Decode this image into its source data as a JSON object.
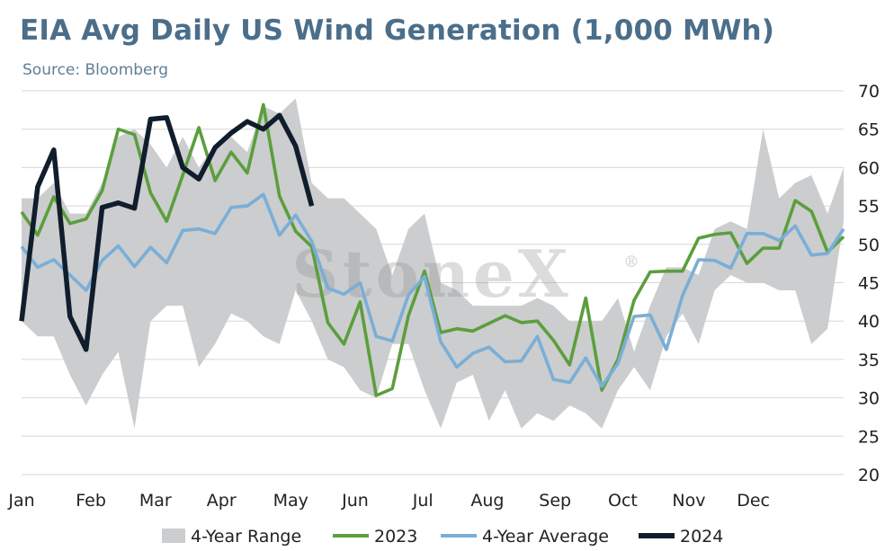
{
  "title": "EIA Avg Daily US Wind Generation (1,000 MWh)",
  "subtitle": "Source: Bloomberg",
  "watermark": "StoneX",
  "watermark_mark": "®",
  "chart_data": {
    "type": "line",
    "title": "EIA Avg Daily US Wind Generation (1,000 MWh)",
    "xlabel": "",
    "ylabel": "",
    "x_unit": "week of year",
    "x_range": [
      1,
      52
    ],
    "ylim": [
      20,
      70
    ],
    "yticks": [
      20,
      25,
      30,
      35,
      40,
      45,
      50,
      55,
      60,
      65,
      70
    ],
    "month_labels": [
      "Jan",
      "Feb",
      "Mar",
      "Apr",
      "May",
      "Jun",
      "Jul",
      "Aug",
      "Sep",
      "Oct",
      "Nov",
      "Dec"
    ],
    "month_week_positions": [
      1,
      5.3,
      9.3,
      13.4,
      17.7,
      21.7,
      25.9,
      29.9,
      34.1,
      38.3,
      42.4,
      46.4
    ],
    "grid": "horizontal",
    "y_axis_side": "right",
    "legend": "bottom",
    "range_band": {
      "name": "4-Year Range",
      "color": "#cbcdcf",
      "weeks": [
        1,
        2,
        3,
        4,
        5,
        6,
        7,
        8,
        9,
        10,
        11,
        12,
        13,
        14,
        15,
        16,
        17,
        18,
        19,
        20,
        21,
        22,
        23,
        24,
        25,
        26,
        27,
        28,
        29,
        30,
        31,
        32,
        33,
        34,
        35,
        36,
        37,
        38,
        39,
        40,
        41,
        42,
        43,
        44,
        45,
        46,
        47,
        48,
        49,
        50,
        51,
        52
      ],
      "high": [
        56,
        56,
        58,
        54,
        54,
        58,
        64,
        65,
        63,
        60,
        64,
        60,
        63,
        64,
        62,
        68,
        67,
        69,
        58,
        56,
        56,
        54,
        52,
        46,
        52,
        54,
        45,
        44,
        42,
        42,
        42,
        42,
        43,
        42,
        40,
        40,
        40,
        43,
        36,
        42,
        47,
        47,
        46,
        52,
        53,
        52,
        65,
        56,
        58,
        59,
        54,
        60
      ],
      "low": [
        40,
        38,
        38,
        33,
        29,
        33,
        36,
        26,
        40,
        42,
        42,
        34,
        37,
        41,
        40,
        38,
        37,
        44,
        40,
        35,
        34,
        31,
        30,
        37,
        37,
        31,
        26,
        32,
        33,
        27,
        31,
        26,
        28,
        27,
        29,
        28,
        26,
        31,
        34,
        31,
        38,
        41,
        37,
        44,
        46,
        45,
        45,
        44,
        44,
        37,
        39,
        53
      ]
    },
    "series": [
      {
        "name": "2023",
        "color": "#5c9e3c",
        "weeks": [
          1,
          2,
          3,
          4,
          5,
          6,
          7,
          8,
          9,
          10,
          11,
          12,
          13,
          14,
          15,
          16,
          17,
          18,
          19,
          20,
          21,
          22,
          23,
          24,
          25,
          26,
          27,
          28,
          29,
          30,
          31,
          32,
          33,
          34,
          35,
          36,
          37,
          38,
          39,
          40,
          41,
          42,
          43,
          44,
          45,
          46,
          47,
          48,
          49,
          50,
          51,
          52
        ],
        "values": [
          54.2,
          51.2,
          56.2,
          52.7,
          53.3,
          57.0,
          65.0,
          64.3,
          56.7,
          53.0,
          59.0,
          65.2,
          58.3,
          62.0,
          59.3,
          68.2,
          56.3,
          51.7,
          49.7,
          39.8,
          37.0,
          42.5,
          30.3,
          31.2,
          40.7,
          46.5,
          38.5,
          39.0,
          38.7,
          39.7,
          40.7,
          39.8,
          40.0,
          37.5,
          34.3,
          43.0,
          31.0,
          35.0,
          42.7,
          46.4,
          46.5,
          46.5,
          50.8,
          51.3,
          51.5,
          47.5,
          49.5,
          49.5,
          55.7,
          54.3,
          49.0,
          51.0
        ]
      },
      {
        "name": "4-Year Average",
        "color": "#7aaed7",
        "weeks": [
          1,
          2,
          3,
          4,
          5,
          6,
          7,
          8,
          9,
          10,
          11,
          12,
          13,
          14,
          15,
          16,
          17,
          18,
          19,
          20,
          21,
          22,
          23,
          24,
          25,
          26,
          27,
          28,
          29,
          30,
          31,
          32,
          33,
          34,
          35,
          36,
          37,
          38,
          39,
          40,
          41,
          42,
          43,
          44,
          45,
          46,
          47,
          48,
          49,
          50,
          51,
          52
        ],
        "values": [
          49.7,
          47.0,
          48.0,
          46.0,
          44.0,
          47.9,
          49.8,
          47.1,
          49.6,
          47.6,
          51.8,
          52.0,
          51.4,
          54.8,
          55.0,
          56.5,
          51.2,
          53.8,
          50.4,
          44.3,
          43.5,
          45.0,
          38.0,
          37.4,
          43.4,
          45.8,
          37.3,
          34.0,
          35.8,
          36.6,
          34.7,
          34.8,
          38.0,
          32.4,
          32.0,
          35.2,
          31.5,
          34.5,
          40.6,
          40.8,
          36.3,
          43.3,
          48.0,
          47.9,
          46.9,
          51.4,
          51.4,
          50.5,
          52.4,
          48.6,
          48.8,
          52.0
        ]
      },
      {
        "name": "2024",
        "color": "#101d2c",
        "weeks": [
          1,
          2,
          3,
          4,
          5,
          6,
          7,
          8,
          9,
          10,
          11,
          12,
          13,
          14,
          15,
          16,
          17,
          18,
          19
        ],
        "values": [
          40.0,
          57.5,
          62.3,
          40.6,
          36.3,
          54.8,
          55.4,
          54.7,
          66.3,
          66.5,
          60.0,
          58.5,
          62.6,
          64.5,
          66.0,
          65.0,
          66.8,
          62.8,
          55.0
        ]
      }
    ]
  },
  "legend": [
    {
      "label": "4-Year Range",
      "kind": "band",
      "color": "#cbcdcf"
    },
    {
      "label": "2023",
      "kind": "line",
      "color": "#5c9e3c"
    },
    {
      "label": "4-Year Average",
      "kind": "line",
      "color": "#7aaed7"
    },
    {
      "label": "2024",
      "kind": "line",
      "color": "#101d2c"
    }
  ]
}
